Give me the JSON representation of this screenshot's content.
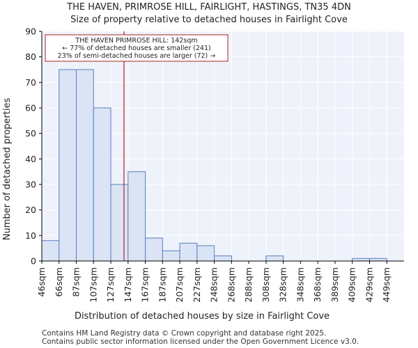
{
  "chart_data": {
    "type": "bar",
    "title": "THE HAVEN, PRIMROSE HILL, FAIRLIGHT, HASTINGS, TN35 4DN",
    "subtitle": "Size of property relative to detached houses in Fairlight Cove",
    "xlabel": "Distribution of detached houses by size in Fairlight Cove",
    "ylabel": "Number of detached properties",
    "categories": [
      "46sqm",
      "66sqm",
      "87sqm",
      "107sqm",
      "127sqm",
      "147sqm",
      "167sqm",
      "187sqm",
      "207sqm",
      "227sqm",
      "248sqm",
      "268sqm",
      "288sqm",
      "308sqm",
      "328sqm",
      "348sqm",
      "368sqm",
      "389sqm",
      "409sqm",
      "429sqm",
      "449sqm"
    ],
    "values": [
      8,
      75,
      75,
      60,
      30,
      35,
      9,
      4,
      7,
      6,
      2,
      0,
      0,
      2,
      0,
      0,
      0,
      0,
      1,
      1,
      0
    ],
    "yticks": [
      0,
      10,
      20,
      30,
      40,
      50,
      60,
      70,
      80,
      90
    ],
    "ylim": [
      0,
      90
    ],
    "grid": true,
    "bar_fill": "#dae4f5",
    "bar_stroke": "#5b7fc0",
    "marker": {
      "value_sqm": 142,
      "color": "#b22222",
      "lines": [
        "THE HAVEN PRIMROSE HILL: 142sqm",
        "← 77% of detached houses are smaller (241)",
        "23% of semi-detached houses are larger (72) →"
      ]
    }
  },
  "footer": {
    "line1": "Contains HM Land Registry data © Crown copyright and database right 2025.",
    "line2": "Contains public sector information licensed under the Open Government Licence v3.0."
  }
}
